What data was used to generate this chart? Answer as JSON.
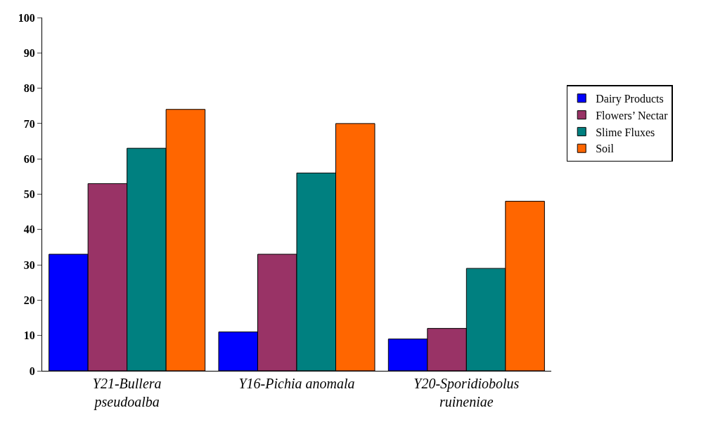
{
  "chart_data": {
    "type": "bar",
    "categories": [
      "Y21-Bullera pseudoalba",
      "Y16-Pichia anomala",
      "Y20-Sporidiobolus ruineniae"
    ],
    "series": [
      {
        "name": "Dairy Products",
        "color": "#0000ff",
        "values": [
          33,
          11,
          9
        ]
      },
      {
        "name": "Flowers’ Nectar",
        "color": "#993366",
        "values": [
          53,
          33,
          12
        ]
      },
      {
        "name": "Slime Fluxes",
        "color": "#008080",
        "values": [
          63,
          56,
          29
        ]
      },
      {
        "name": "Soil",
        "color": "#ff6600",
        "values": [
          74,
          70,
          48
        ]
      }
    ],
    "ylim": [
      0,
      100
    ],
    "yticks": [
      0,
      10,
      20,
      30,
      40,
      50,
      60,
      70,
      80,
      90,
      100
    ],
    "legend": "right"
  }
}
